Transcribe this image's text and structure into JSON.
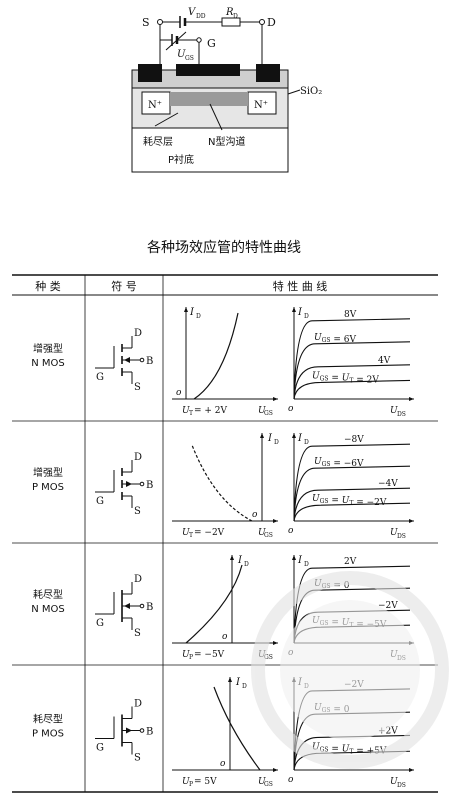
{
  "top_diagram": {
    "terminal_s": "S",
    "terminal_d": "D",
    "terminal_g": "G",
    "vdd_label": "V",
    "vdd_sub": "DD",
    "rd_label": "R",
    "rd_sub": "D",
    "ugs_label": "U",
    "ugs_sub": "GS",
    "n_plus_left": "N⁺",
    "n_plus_right": "N⁺",
    "sio2": "SiO₂",
    "depletion_layer": "耗尽层",
    "n_channel": "N型沟道",
    "p_substrate": "P衬底"
  },
  "page_title": "各种场效应管的特性曲线",
  "table": {
    "headers": [
      "种 类",
      "符 号",
      "特 性 曲 线"
    ],
    "rows": [
      {
        "type_line1": "增强型",
        "type_line2": "N MOS",
        "sym_d": "D",
        "sym_g": "G",
        "sym_s": "S",
        "sym_b": "B",
        "transfer_ylabel": "I",
        "transfer_ylabel_sub": "D",
        "transfer_origin": "o",
        "transfer_threshold": "U",
        "transfer_threshold_sub": "T",
        "transfer_threshold_val": "= + 2V",
        "transfer_xlabel": "U",
        "transfer_xlabel_sub": "GS",
        "output_ylabel": "I",
        "output_ylabel_sub": "D",
        "output_origin": "o",
        "output_xlabel": "U",
        "output_xlabel_sub": "DS",
        "curve_labels": [
          "8V",
          "U_GS = 6V",
          "4V",
          "U_GS = U_T = 2V"
        ]
      },
      {
        "type_line1": "增强型",
        "type_line2": "P MOS",
        "sym_d": "D",
        "sym_g": "G",
        "sym_s": "S",
        "sym_b": "B",
        "transfer_ylabel": "I",
        "transfer_ylabel_sub": "D",
        "transfer_origin": "o",
        "transfer_threshold": "U",
        "transfer_threshold_sub": "T",
        "transfer_threshold_val": "= −2V",
        "transfer_xlabel": "U",
        "transfer_xlabel_sub": "GS",
        "output_ylabel": "I",
        "output_ylabel_sub": "D",
        "output_origin": "o",
        "output_xlabel": "U",
        "output_xlabel_sub": "DS",
        "curve_labels": [
          "−8V",
          "U_GS = −6V",
          "−4V",
          "U_GS = U_T = −2V"
        ]
      },
      {
        "type_line1": "耗尽型",
        "type_line2": "N MOS",
        "sym_d": "D",
        "sym_g": "G",
        "sym_s": "S",
        "sym_b": "B",
        "transfer_ylabel": "I",
        "transfer_ylabel_sub": "D",
        "transfer_origin": "o",
        "transfer_threshold": "U",
        "transfer_threshold_sub": "P",
        "transfer_threshold_val": "= −5V",
        "transfer_xlabel": "U",
        "transfer_xlabel_sub": "GS",
        "output_ylabel": "I",
        "output_ylabel_sub": "D",
        "output_origin": "o",
        "output_xlabel": "U",
        "output_xlabel_sub": "DS",
        "curve_labels": [
          "2V",
          "U_GS = 0",
          "−2V",
          "U_GS = U_T = −5V"
        ]
      },
      {
        "type_line1": "耗尽型",
        "type_line2": "P MOS",
        "sym_d": "D",
        "sym_g": "G",
        "sym_s": "S",
        "sym_b": "B",
        "transfer_ylabel": "I",
        "transfer_ylabel_sub": "D",
        "transfer_origin": "o",
        "transfer_threshold": "U",
        "transfer_threshold_sub": "P",
        "transfer_threshold_val": "= 5V",
        "transfer_xlabel": "U",
        "transfer_xlabel_sub": "GS",
        "output_ylabel": "I",
        "output_ylabel_sub": "D",
        "output_origin": "o",
        "output_xlabel": "U",
        "output_xlabel_sub": "DS",
        "curve_labels": [
          "−2V",
          "U_GS = 0",
          "+2V",
          "U_GS = U_T = +5V"
        ]
      }
    ]
  }
}
